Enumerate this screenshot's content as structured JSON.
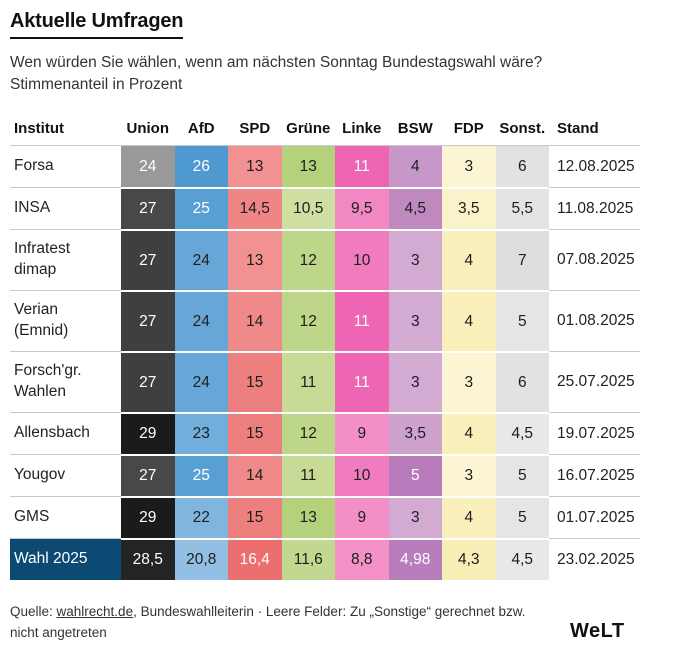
{
  "title": "Aktuelle Umfragen",
  "subtitle_line1": "Wen würden Sie wählen, wenn am nächsten Sonntag Bundestagswahl wäre?",
  "subtitle_line2": "Stimmenanteil in Prozent",
  "colors": {
    "highlight_row_bg": "#0c4a73",
    "divider": "#c9c9c9",
    "text_dark": "#1e1e1e",
    "text_light": "#ffffff"
  },
  "table": {
    "columns": [
      "Institut",
      "Union",
      "AfD",
      "SPD",
      "Grüne",
      "Linke",
      "BSW",
      "FDP",
      "Sonst.",
      "Stand"
    ],
    "rows": [
      {
        "institut": "Forsa",
        "tall": false,
        "highlight": false,
        "stand": "12.08.2025",
        "cells": [
          {
            "v": "24",
            "bg": "#999999",
            "fg": "#ffffff"
          },
          {
            "v": "26",
            "bg": "#4f99d1",
            "fg": "#ffffff"
          },
          {
            "v": "13",
            "bg": "#f19191",
            "fg": "#1e1e1e"
          },
          {
            "v": "13",
            "bg": "#b5d17c",
            "fg": "#1e1e1e"
          },
          {
            "v": "11",
            "bg": "#ee66b3",
            "fg": "#ffffff"
          },
          {
            "v": "4",
            "bg": "#c697c8",
            "fg": "#1e1e1e"
          },
          {
            "v": "3",
            "bg": "#fbf5d3",
            "fg": "#1e1e1e"
          },
          {
            "v": "6",
            "bg": "#e2e2e2",
            "fg": "#1e1e1e"
          }
        ]
      },
      {
        "institut": "INSA",
        "tall": false,
        "highlight": false,
        "stand": "11.08.2025",
        "cells": [
          {
            "v": "27",
            "bg": "#484848",
            "fg": "#ffffff"
          },
          {
            "v": "25",
            "bg": "#58a0d4",
            "fg": "#ffffff"
          },
          {
            "v": "14,5",
            "bg": "#ef8585",
            "fg": "#1e1e1e"
          },
          {
            "v": "10,5",
            "bg": "#cfdfa2",
            "fg": "#1e1e1e"
          },
          {
            "v": "9,5",
            "bg": "#f187c3",
            "fg": "#1e1e1e"
          },
          {
            "v": "4,5",
            "bg": "#bf89c0",
            "fg": "#1e1e1e"
          },
          {
            "v": "3,5",
            "bg": "#faf3ca",
            "fg": "#1e1e1e"
          },
          {
            "v": "5,5",
            "bg": "#e3e3e3",
            "fg": "#1e1e1e"
          }
        ]
      },
      {
        "institut": "Infratest dimap",
        "tall": true,
        "highlight": false,
        "stand": "07.08.2025",
        "cells": [
          {
            "v": "27",
            "bg": "#3f3f3f",
            "fg": "#ffffff"
          },
          {
            "v": "24",
            "bg": "#67a7d8",
            "fg": "#1e1e1e"
          },
          {
            "v": "13",
            "bg": "#f19191",
            "fg": "#1e1e1e"
          },
          {
            "v": "12",
            "bg": "#bed689",
            "fg": "#1e1e1e"
          },
          {
            "v": "10",
            "bg": "#f07cbe",
            "fg": "#1e1e1e"
          },
          {
            "v": "3",
            "bg": "#d2aad2",
            "fg": "#1e1e1e"
          },
          {
            "v": "4",
            "bg": "#f9f0bc",
            "fg": "#1e1e1e"
          },
          {
            "v": "7",
            "bg": "#dedede",
            "fg": "#1e1e1e"
          }
        ]
      },
      {
        "institut": "Verian (Emnid)",
        "tall": true,
        "highlight": false,
        "stand": "01.08.2025",
        "cells": [
          {
            "v": "27",
            "bg": "#3f3f3f",
            "fg": "#ffffff"
          },
          {
            "v": "24",
            "bg": "#67a7d8",
            "fg": "#1e1e1e"
          },
          {
            "v": "14",
            "bg": "#f08a8a",
            "fg": "#1e1e1e"
          },
          {
            "v": "12",
            "bg": "#bed689",
            "fg": "#1e1e1e"
          },
          {
            "v": "11",
            "bg": "#ee66b3",
            "fg": "#ffffff"
          },
          {
            "v": "3",
            "bg": "#d2aad2",
            "fg": "#1e1e1e"
          },
          {
            "v": "4",
            "bg": "#f9f0bc",
            "fg": "#1e1e1e"
          },
          {
            "v": "5",
            "bg": "#e5e5e5",
            "fg": "#1e1e1e"
          }
        ]
      },
      {
        "institut": "Forsch'gr. Wahlen",
        "tall": true,
        "highlight": false,
        "stand": "25.07.2025",
        "cells": [
          {
            "v": "27",
            "bg": "#3f3f3f",
            "fg": "#ffffff"
          },
          {
            "v": "24",
            "bg": "#67a7d8",
            "fg": "#1e1e1e"
          },
          {
            "v": "15",
            "bg": "#ee7f7f",
            "fg": "#1e1e1e"
          },
          {
            "v": "11",
            "bg": "#c7da96",
            "fg": "#1e1e1e"
          },
          {
            "v": "11",
            "bg": "#ee66b3",
            "fg": "#ffffff"
          },
          {
            "v": "3",
            "bg": "#d2aad2",
            "fg": "#1e1e1e"
          },
          {
            "v": "3",
            "bg": "#fbf5d3",
            "fg": "#1e1e1e"
          },
          {
            "v": "6",
            "bg": "#e2e2e2",
            "fg": "#1e1e1e"
          }
        ]
      },
      {
        "institut": "Allensbach",
        "tall": false,
        "highlight": false,
        "stand": "19.07.2025",
        "cells": [
          {
            "v": "29",
            "bg": "#1b1b1b",
            "fg": "#ffffff"
          },
          {
            "v": "23",
            "bg": "#72aedb",
            "fg": "#1e1e1e"
          },
          {
            "v": "15",
            "bg": "#ee7f7f",
            "fg": "#1e1e1e"
          },
          {
            "v": "12",
            "bg": "#bed689",
            "fg": "#1e1e1e"
          },
          {
            "v": "9",
            "bg": "#f38fc7",
            "fg": "#1e1e1e"
          },
          {
            "v": "3,5",
            "bg": "#cda3ce",
            "fg": "#1e1e1e"
          },
          {
            "v": "4",
            "bg": "#f9f0bc",
            "fg": "#1e1e1e"
          },
          {
            "v": "4,5",
            "bg": "#e8e8e8",
            "fg": "#1e1e1e"
          }
        ]
      },
      {
        "institut": "Yougov",
        "tall": false,
        "highlight": false,
        "stand": "16.07.2025",
        "cells": [
          {
            "v": "27",
            "bg": "#484848",
            "fg": "#ffffff"
          },
          {
            "v": "25",
            "bg": "#58a0d4",
            "fg": "#ffffff"
          },
          {
            "v": "14",
            "bg": "#f08a8a",
            "fg": "#1e1e1e"
          },
          {
            "v": "11",
            "bg": "#c7da96",
            "fg": "#1e1e1e"
          },
          {
            "v": "10",
            "bg": "#f07cbe",
            "fg": "#1e1e1e"
          },
          {
            "v": "5",
            "bg": "#b87cbc",
            "fg": "#ffffff"
          },
          {
            "v": "3",
            "bg": "#fbf5d3",
            "fg": "#1e1e1e"
          },
          {
            "v": "5",
            "bg": "#e5e5e5",
            "fg": "#1e1e1e"
          }
        ]
      },
      {
        "institut": "GMS",
        "tall": false,
        "highlight": false,
        "stand": "01.07.2025",
        "cells": [
          {
            "v": "29",
            "bg": "#1b1b1b",
            "fg": "#ffffff"
          },
          {
            "v": "22",
            "bg": "#80b5de",
            "fg": "#1e1e1e"
          },
          {
            "v": "15",
            "bg": "#ee7f7f",
            "fg": "#1e1e1e"
          },
          {
            "v": "13",
            "bg": "#b5d17c",
            "fg": "#1e1e1e"
          },
          {
            "v": "9",
            "bg": "#f38fc7",
            "fg": "#1e1e1e"
          },
          {
            "v": "3",
            "bg": "#d2aad2",
            "fg": "#1e1e1e"
          },
          {
            "v": "4",
            "bg": "#f9f0bc",
            "fg": "#1e1e1e"
          },
          {
            "v": "5",
            "bg": "#e5e5e5",
            "fg": "#1e1e1e"
          }
        ]
      },
      {
        "institut": "Wahl 2025",
        "tall": false,
        "highlight": true,
        "stand": "23.02.2025",
        "cells": [
          {
            "v": "28,5",
            "bg": "#242424",
            "fg": "#ffffff"
          },
          {
            "v": "20,8",
            "bg": "#92bfe3",
            "fg": "#1e1e1e"
          },
          {
            "v": "16,4",
            "bg": "#ec6f6f",
            "fg": "#ffffff"
          },
          {
            "v": "11,6",
            "bg": "#c2d88f",
            "fg": "#1e1e1e"
          },
          {
            "v": "8,8",
            "bg": "#f391c8",
            "fg": "#1e1e1e"
          },
          {
            "v": "4,98",
            "bg": "#b87dbc",
            "fg": "#ffffff"
          },
          {
            "v": "4,3",
            "bg": "#f8efb6",
            "fg": "#1e1e1e"
          },
          {
            "v": "4,5",
            "bg": "#e8e8e8",
            "fg": "#1e1e1e"
          }
        ]
      }
    ]
  },
  "footer": {
    "prefix": "Quelle: ",
    "link": "wahlrecht.de",
    "suffix": ", Bundeswahlleiterin · Leere Felder: Zu „Sonstige“ gerechnet bzw.",
    "line2": "nicht angetreten",
    "logo": "WeLT"
  },
  "chart_data": {
    "type": "table",
    "title": "Aktuelle Umfragen",
    "subtitle": "Wen würden Sie wählen, wenn am nächsten Sonntag Bundestagswahl wäre? Stimmenanteil in Prozent",
    "columns": [
      "Institut",
      "Union",
      "AfD",
      "SPD",
      "Grüne",
      "Linke",
      "BSW",
      "FDP",
      "Sonst.",
      "Stand"
    ],
    "rows": [
      [
        "Forsa",
        24,
        26,
        13,
        13,
        11,
        4,
        3,
        6,
        "12.08.2025"
      ],
      [
        "INSA",
        27,
        25,
        14.5,
        10.5,
        9.5,
        4.5,
        3.5,
        5.5,
        "11.08.2025"
      ],
      [
        "Infratest dimap",
        27,
        24,
        13,
        12,
        10,
        3,
        4,
        7,
        "07.08.2025"
      ],
      [
        "Verian (Emnid)",
        27,
        24,
        14,
        12,
        11,
        3,
        4,
        5,
        "01.08.2025"
      ],
      [
        "Forsch'gr. Wahlen",
        27,
        24,
        15,
        11,
        11,
        3,
        3,
        6,
        "25.07.2025"
      ],
      [
        "Allensbach",
        29,
        23,
        15,
        12,
        9,
        3.5,
        4,
        4.5,
        "19.07.2025"
      ],
      [
        "Yougov",
        27,
        25,
        14,
        11,
        10,
        5,
        3,
        5,
        "16.07.2025"
      ],
      [
        "GMS",
        29,
        22,
        15,
        13,
        9,
        3,
        4,
        5,
        "01.07.2025"
      ],
      [
        "Wahl 2025",
        28.5,
        20.8,
        16.4,
        11.6,
        8.8,
        4.98,
        4.3,
        4.5,
        "23.02.2025"
      ]
    ],
    "note": "Heatmap-style cell shading: darker party color = higher value"
  }
}
